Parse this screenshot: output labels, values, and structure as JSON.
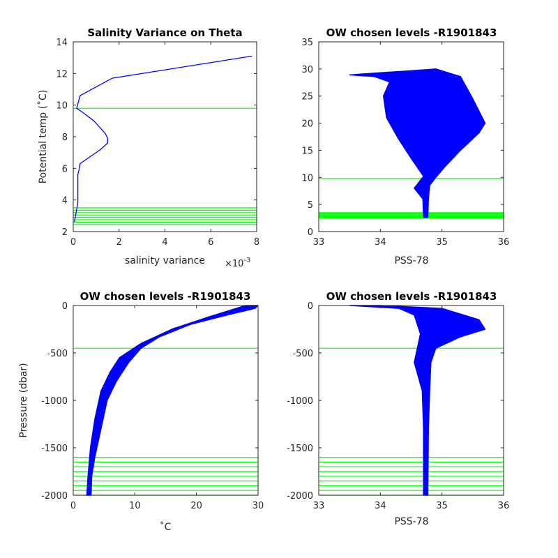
{
  "colors": {
    "profile": "#0000ff",
    "level": "#00ff00",
    "axis": "#262626"
  },
  "chart_data": [
    {
      "type": "line",
      "title": "Salinity Variance on Theta",
      "xlabel": "salinity variance",
      "x_exponent": "×10",
      "x_exponent_power": "-3",
      "ylabel": "Potential temp (˚C)",
      "xlim": [
        0,
        0.008
      ],
      "ylim": [
        2,
        14
      ],
      "xticks": [
        0,
        0.002,
        0.004,
        0.006,
        0.008
      ],
      "xtick_labels": [
        "0",
        "2",
        "4",
        "6",
        "8"
      ],
      "yticks": [
        2,
        4,
        6,
        8,
        10,
        12,
        14
      ],
      "ytick_labels": [
        "2",
        "4",
        "6",
        "8",
        "10",
        "12",
        "14"
      ],
      "series": [
        {
          "x": [
            0.0078,
            0.0017,
            0.0003,
            0.00015,
            0.00045,
            0.0009,
            0.0014,
            0.0015,
            0.0015,
            0.0012,
            0.0007,
            0.0003,
            0.00025,
            0.0002,
            0.0002,
            0.0002,
            0.00015,
            0.0001,
            5e-05
          ],
          "y": [
            13.1,
            11.7,
            10.6,
            9.8,
            9.5,
            9.0,
            8.2,
            7.9,
            7.6,
            7.2,
            6.7,
            6.3,
            5.9,
            5.6,
            4.6,
            3.8,
            3.4,
            3.0,
            2.6
          ]
        }
      ],
      "levels": [
        9.8,
        3.5,
        3.35,
        3.2,
        3.05,
        2.9,
        2.75,
        2.6,
        2.45
      ]
    },
    {
      "type": "line",
      "title": "OW chosen levels -R1901843",
      "xlabel": "PSS-78",
      "ylabel": "",
      "xlim": [
        33,
        36
      ],
      "ylim": [
        0,
        35
      ],
      "xticks": [
        33,
        34,
        35,
        36
      ],
      "xtick_labels": [
        "33",
        "34",
        "35",
        "36"
      ],
      "yticks": [
        0,
        5,
        10,
        15,
        20,
        25,
        30,
        35
      ],
      "ytick_labels": [
        "0",
        "5",
        "10",
        "15",
        "20",
        "25",
        "30",
        "35"
      ],
      "envelope": {
        "upper": [
          [
            33.5,
            28.9
          ],
          [
            34.0,
            29.3
          ],
          [
            34.4,
            29.6
          ],
          [
            34.9,
            30.0
          ],
          [
            35.3,
            28.6
          ],
          [
            35.5,
            24.5
          ],
          [
            35.7,
            20.0
          ],
          [
            35.6,
            18.2
          ],
          [
            35.3,
            15.0
          ],
          [
            35.05,
            12.0
          ],
          [
            34.9,
            10.0
          ],
          [
            34.8,
            8.5
          ],
          [
            34.78,
            6.0
          ],
          [
            34.77,
            2.6
          ]
        ],
        "lower": [
          [
            34.7,
            2.6
          ],
          [
            34.69,
            6.0
          ],
          [
            34.55,
            8.0
          ],
          [
            34.7,
            10.2
          ],
          [
            34.5,
            13.5
          ],
          [
            34.3,
            17.0
          ],
          [
            34.1,
            21.0
          ],
          [
            34.05,
            25.0
          ],
          [
            34.15,
            27.6
          ],
          [
            33.9,
            28.6
          ],
          [
            33.5,
            28.9
          ]
        ]
      },
      "levels": [
        9.8,
        3.5,
        3.35,
        3.2,
        3.05,
        2.9,
        2.75,
        2.6,
        2.45
      ]
    },
    {
      "type": "line",
      "title": "OW chosen levels -R1901843",
      "xlabel": "˚C",
      "ylabel": "Pressure (dbar)",
      "xlim": [
        0,
        30
      ],
      "ylim": [
        -2000,
        0
      ],
      "xticks": [
        0,
        10,
        20,
        30
      ],
      "xtick_labels": [
        "0",
        "10",
        "20",
        "30"
      ],
      "yticks": [
        -2000,
        -1500,
        -1000,
        -500,
        0
      ],
      "ytick_labels": [
        "-2000",
        "-1500",
        "-1000",
        "-500",
        "0"
      ],
      "envelope": {
        "upper": [
          [
            30.0,
            0
          ],
          [
            29.5,
            -30
          ],
          [
            25.0,
            -100
          ],
          [
            19.0,
            -200
          ],
          [
            14.0,
            -330
          ],
          [
            11.0,
            -450
          ],
          [
            9.0,
            -600
          ],
          [
            7.0,
            -800
          ],
          [
            5.5,
            -1000
          ],
          [
            4.5,
            -1300
          ],
          [
            3.5,
            -1600
          ],
          [
            3.0,
            -1800
          ],
          [
            2.9,
            -2000
          ]
        ],
        "lower": [
          [
            2.2,
            -2000
          ],
          [
            2.4,
            -1800
          ],
          [
            2.8,
            -1500
          ],
          [
            3.5,
            -1200
          ],
          [
            4.5,
            -900
          ],
          [
            6.0,
            -700
          ],
          [
            7.5,
            -550
          ],
          [
            11.0,
            -400
          ],
          [
            16.0,
            -250
          ],
          [
            22.0,
            -120
          ],
          [
            26.0,
            -40
          ],
          [
            28.0,
            0
          ]
        ]
      },
      "levels": [
        -450,
        -1600,
        -1650,
        -1700,
        -1750,
        -1800,
        -1850,
        -1900,
        -1950,
        -2000
      ]
    },
    {
      "type": "line",
      "title": "OW chosen levels -R1901843",
      "xlabel": "PSS-78",
      "ylabel": "",
      "xlim": [
        33,
        36
      ],
      "ylim": [
        -2000,
        0
      ],
      "xticks": [
        33,
        34,
        35,
        36
      ],
      "xtick_labels": [
        "33",
        "34",
        "35",
        "36"
      ],
      "yticks": [
        -2000,
        -1500,
        -1000,
        -500,
        0
      ],
      "ytick_labels": [
        "-2000",
        "-1500",
        "-1000",
        "-500",
        "0"
      ],
      "envelope": {
        "upper": [
          [
            34.0,
            0
          ],
          [
            35.0,
            -30
          ],
          [
            35.6,
            -150
          ],
          [
            35.7,
            -250
          ],
          [
            35.3,
            -330
          ],
          [
            34.9,
            -450
          ],
          [
            34.82,
            -600
          ],
          [
            34.8,
            -900
          ],
          [
            34.78,
            -1300
          ],
          [
            34.77,
            -2000
          ]
        ],
        "lower": [
          [
            34.7,
            -2000
          ],
          [
            34.7,
            -1300
          ],
          [
            34.68,
            -900
          ],
          [
            34.55,
            -600
          ],
          [
            34.6,
            -450
          ],
          [
            34.65,
            -300
          ],
          [
            34.55,
            -100
          ],
          [
            34.3,
            -30
          ],
          [
            33.5,
            0
          ]
        ]
      },
      "levels": [
        -450,
        -1600,
        -1650,
        -1700,
        -1750,
        -1800,
        -1850,
        -1900,
        -1950,
        -2000
      ]
    }
  ]
}
